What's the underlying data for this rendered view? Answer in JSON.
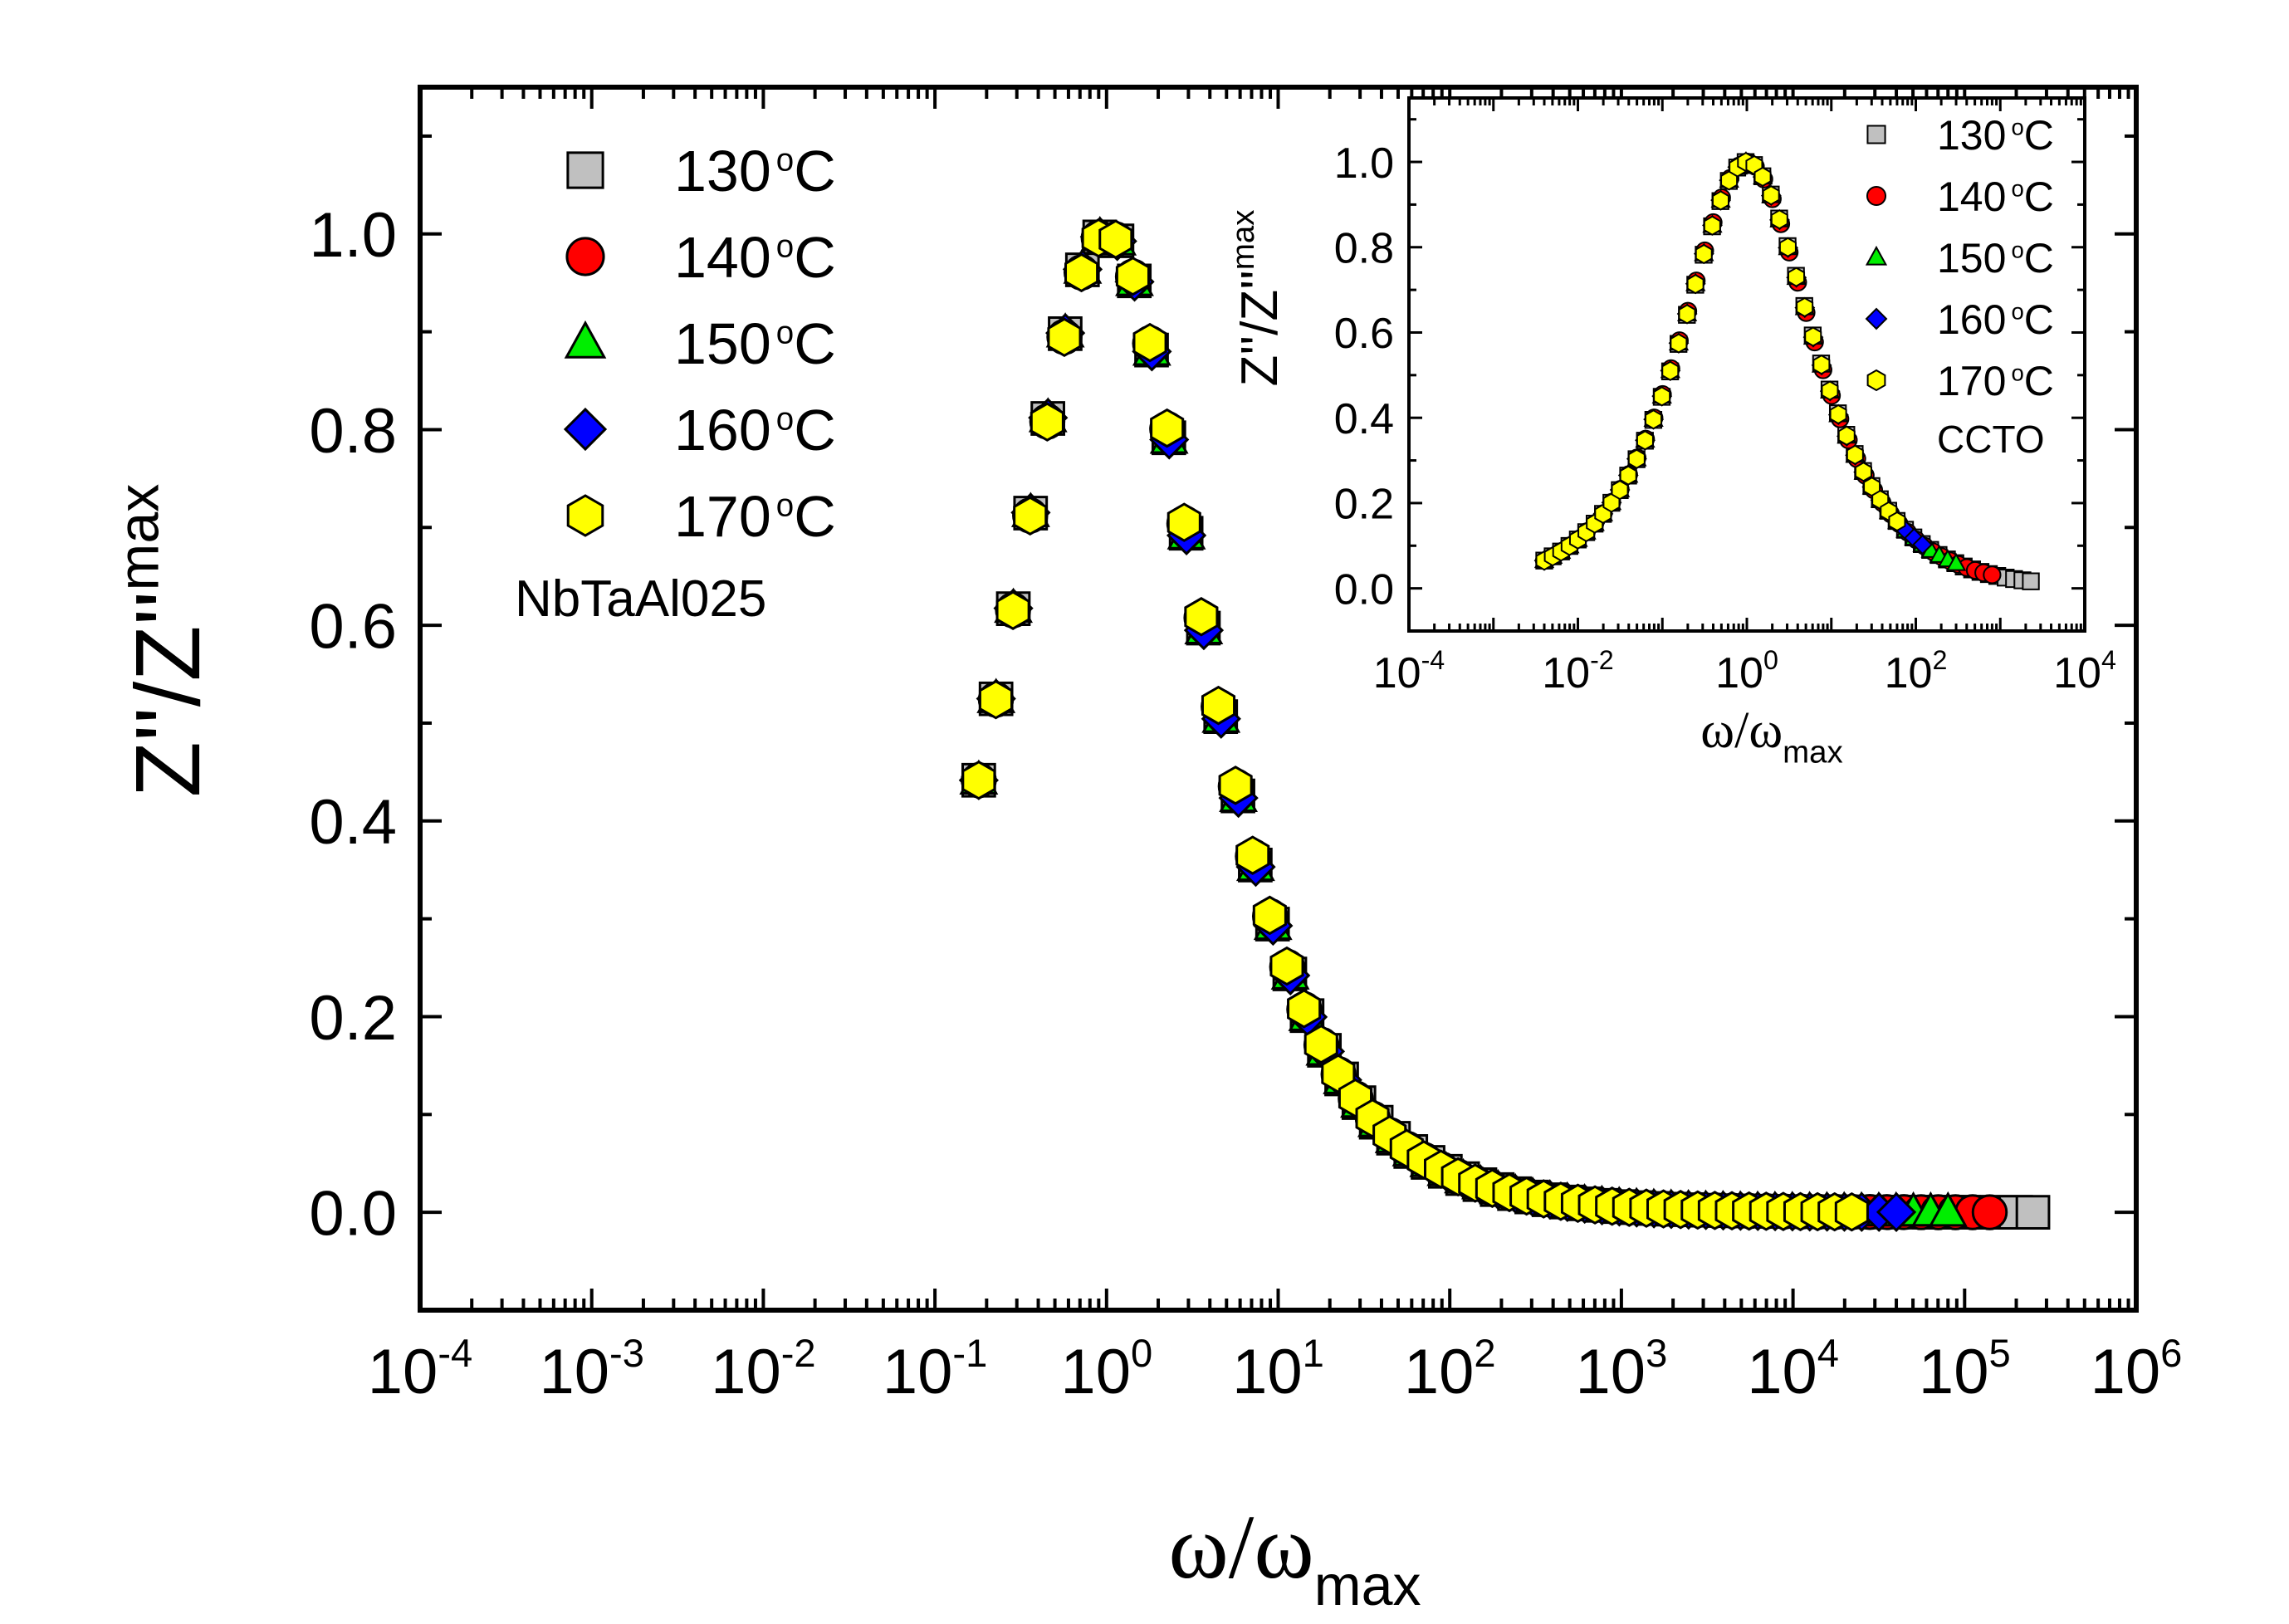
{
  "colors": {
    "axis": "#000000",
    "background": "#ffffff",
    "marker_stroke": "#000000",
    "series_130": "#c0c0c0",
    "series_140": "#ff0000",
    "series_150": "#00ee00",
    "series_160": "#0000ff",
    "series_170": "#ffff00"
  },
  "chart_data": [
    {
      "id": "main",
      "type": "scatter",
      "x_scale": "log",
      "xlim": [
        0.0001,
        1000000
      ],
      "ylim": [
        -0.1,
        1.15
      ],
      "xlabel": {
        "main": "ω/ω",
        "sub": "max"
      },
      "ylabel": {
        "main": "Z''/Z''",
        "sub": "max"
      },
      "x_tick_labels": [
        {
          "base": "10",
          "exp": "-4",
          "value": 0.0001
        },
        {
          "base": "10",
          "exp": "-3",
          "value": 0.001
        },
        {
          "base": "10",
          "exp": "-2",
          "value": 0.01
        },
        {
          "base": "10",
          "exp": "-1",
          "value": 0.1
        },
        {
          "base": "10",
          "exp": "0",
          "value": 1
        },
        {
          "base": "10",
          "exp": "1",
          "value": 10
        },
        {
          "base": "10",
          "exp": "2",
          "value": 100
        },
        {
          "base": "10",
          "exp": "3",
          "value": 1000
        },
        {
          "base": "10",
          "exp": "4",
          "value": 10000
        },
        {
          "base": "10",
          "exp": "5",
          "value": 100000
        },
        {
          "base": "10",
          "exp": "6",
          "value": 1000000
        }
      ],
      "y_tick_labels": [
        {
          "label": "0.0",
          "value": 0.0
        },
        {
          "label": "0.2",
          "value": 0.2
        },
        {
          "label": "0.4",
          "value": 0.4
        },
        {
          "label": "0.6",
          "value": 0.6
        },
        {
          "label": "0.8",
          "value": 0.8
        },
        {
          "label": "1.0",
          "value": 1.0
        }
      ],
      "annotation": "NbTaAl025",
      "legend_position": "top-left",
      "curve_model": "Z''/Z''max = 1/(cosh(k·ln(ω/ωmax))), k≈0.85 (estimated)",
      "curve_k": 0.85,
      "points_per_decade": 10,
      "series": [
        {
          "name": "130 °C",
          "temp": "130",
          "marker": "square",
          "color_key": "series_130",
          "x_min": 0.18,
          "x_max": 250000
        },
        {
          "name": "140 °C",
          "temp": "140",
          "marker": "circle",
          "color_key": "series_140",
          "x_min": 0.18,
          "x_max": 140000
        },
        {
          "name": "150 °C",
          "temp": "150",
          "marker": "triangle",
          "color_key": "series_150",
          "x_min": 0.18,
          "x_max": 80000
        },
        {
          "name": "160 °C",
          "temp": "160",
          "marker": "diamond",
          "color_key": "series_160",
          "x_min": 0.18,
          "x_max": 40000
        },
        {
          "name": "170 °C",
          "temp": "170",
          "marker": "hexagon",
          "color_key": "series_170",
          "x_min": 0.18,
          "x_max": 22000
        }
      ]
    },
    {
      "id": "inset",
      "type": "scatter",
      "x_scale": "log",
      "xlim": [
        0.0001,
        10000
      ],
      "ylim": [
        -0.1,
        1.15
      ],
      "xlabel": {
        "main": "ω/ω",
        "sub": "max"
      },
      "ylabel": {
        "main": "Z''/Z''",
        "sub": "max"
      },
      "x_tick_labels": [
        {
          "base": "10",
          "exp": "-4",
          "value": 0.0001
        },
        {
          "base": "10",
          "exp": "-2",
          "value": 0.01
        },
        {
          "base": "10",
          "exp": "0",
          "value": 1
        },
        {
          "base": "10",
          "exp": "2",
          "value": 100
        },
        {
          "base": "10",
          "exp": "4",
          "value": 10000
        }
      ],
      "y_tick_labels": [
        {
          "label": "0.0",
          "value": 0.0
        },
        {
          "label": "0.2",
          "value": 0.2
        },
        {
          "label": "0.4",
          "value": 0.4
        },
        {
          "label": "0.6",
          "value": 0.6
        },
        {
          "label": "0.8",
          "value": 0.8
        },
        {
          "label": "1.0",
          "value": 1.0
        }
      ],
      "annotation": "CCTO",
      "legend_position": "top-right",
      "curve_model": "Z''/Z''max = 1/(cosh(k·ln(ω/ωmax))), k≈0.62 (estimated)",
      "curve_k": 0.62,
      "points_per_decade": 10,
      "series": [
        {
          "name": "130 °C",
          "temp": "130",
          "marker": "square",
          "color_key": "series_130",
          "x_min": 0.004,
          "x_max": 2300
        },
        {
          "name": "140 °C",
          "temp": "140",
          "marker": "circle",
          "color_key": "series_140",
          "x_min": 0.004,
          "x_max": 800
        },
        {
          "name": "150 °C",
          "temp": "150",
          "marker": "triangle",
          "color_key": "series_150",
          "x_min": 0.004,
          "x_max": 300
        },
        {
          "name": "160 °C",
          "temp": "160",
          "marker": "diamond",
          "color_key": "series_160",
          "x_min": 0.004,
          "x_max": 120
        },
        {
          "name": "170 °C",
          "temp": "170",
          "marker": "hexagon",
          "color_key": "series_170",
          "x_min": 0.004,
          "x_max": 60
        }
      ]
    }
  ]
}
